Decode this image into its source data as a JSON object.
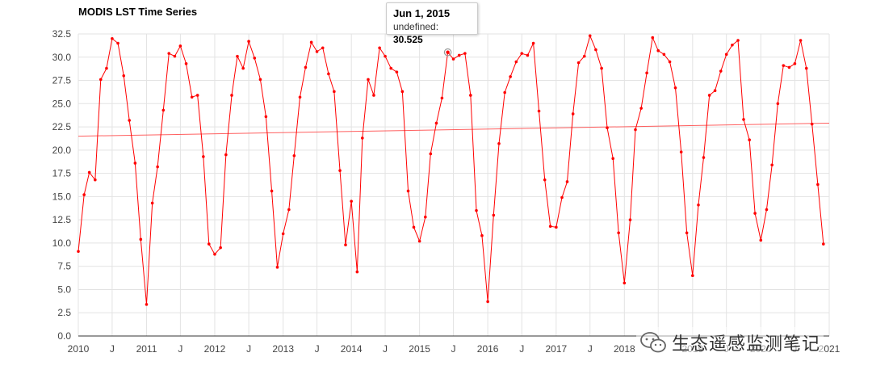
{
  "chart_data": {
    "type": "line",
    "title": "MODIS LST Time Series",
    "xlabel": "",
    "ylabel": "",
    "ylim": [
      0,
      32.5
    ],
    "yticks": [
      "0.0",
      "2.5",
      "5.0",
      "7.5",
      "10.0",
      "12.5",
      "15.0",
      "17.5",
      "20.0",
      "22.5",
      "25.0",
      "27.5",
      "30.0",
      "32.5"
    ],
    "xlim": [
      "2010-01-01",
      "2021-01-01"
    ],
    "xticks": [
      {
        "date": "2010-01-01",
        "label": "2010"
      },
      {
        "date": "2010-07-01",
        "label": "J"
      },
      {
        "date": "2011-01-01",
        "label": "2011"
      },
      {
        "date": "2011-07-01",
        "label": "J"
      },
      {
        "date": "2012-01-01",
        "label": "2012"
      },
      {
        "date": "2012-07-01",
        "label": "J"
      },
      {
        "date": "2013-01-01",
        "label": "2013"
      },
      {
        "date": "2013-07-01",
        "label": "J"
      },
      {
        "date": "2014-01-01",
        "label": "2014"
      },
      {
        "date": "2014-07-01",
        "label": "J"
      },
      {
        "date": "2015-01-01",
        "label": "2015"
      },
      {
        "date": "2015-07-01",
        "label": "J"
      },
      {
        "date": "2016-01-01",
        "label": "2016"
      },
      {
        "date": "2016-07-01",
        "label": "J"
      },
      {
        "date": "2017-01-01",
        "label": "2017"
      },
      {
        "date": "2017-07-01",
        "label": "J"
      },
      {
        "date": "2018-01-01",
        "label": "2018"
      },
      {
        "date": "2018-07-01",
        "label": "J"
      },
      {
        "date": "2019-01-01",
        "label": "2019"
      },
      {
        "date": "2019-07-01",
        "label": "J"
      },
      {
        "date": "2020-01-01",
        "label": "2020"
      },
      {
        "date": "2020-07-01",
        "label": "J"
      },
      {
        "date": "2021-01-01",
        "label": "2021"
      }
    ],
    "grid": true,
    "legend": "none",
    "series": [
      {
        "color": "#ff0000",
        "start": "2010-01",
        "interval": "monthly",
        "values": [
          9.1,
          15.2,
          17.6,
          16.8,
          27.6,
          28.8,
          32.0,
          31.5,
          28.0,
          23.2,
          18.6,
          10.4,
          3.4,
          14.3,
          18.2,
          24.3,
          30.4,
          30.1,
          31.2,
          29.3,
          25.7,
          25.9,
          19.3,
          9.9,
          8.8,
          9.5,
          19.5,
          25.9,
          30.1,
          28.8,
          31.7,
          29.9,
          27.6,
          23.6,
          15.6,
          7.4,
          11.0,
          13.6,
          19.4,
          25.7,
          28.9,
          31.6,
          30.6,
          31.0,
          28.2,
          26.3,
          17.8,
          9.8,
          14.5,
          6.9,
          21.3,
          27.6,
          25.9,
          31.0,
          30.1,
          28.8,
          28.4,
          26.3,
          15.6,
          11.7,
          10.2,
          12.8,
          19.6,
          22.9,
          25.6,
          30.525,
          29.8,
          30.2,
          30.4,
          25.9,
          13.5,
          10.8,
          3.7,
          13.0,
          20.7,
          26.2,
          27.9,
          29.5,
          30.4,
          30.2,
          31.5,
          24.2,
          16.8,
          11.8,
          11.7,
          14.9,
          16.6,
          23.9,
          29.4,
          30.1,
          32.3,
          30.8,
          28.8,
          22.4,
          19.1,
          11.1,
          5.7,
          12.5,
          22.2,
          24.5,
          28.3,
          32.1,
          30.7,
          30.3,
          29.5,
          26.7,
          19.8,
          11.1,
          6.5,
          14.1,
          19.2,
          25.9,
          26.4,
          28.5,
          30.3,
          31.3,
          31.8,
          23.3,
          21.1,
          13.2,
          10.3,
          13.6,
          18.4,
          25.0,
          29.1,
          28.9,
          29.3,
          31.8,
          28.8,
          22.8,
          16.3,
          9.9
        ]
      }
    ],
    "trendline": {
      "start": 21.5,
      "end": 22.9,
      "color": "#ff4444"
    },
    "tooltip": {
      "date": "Jun 1, 2015",
      "series_label": "undefined:",
      "value": "30.525",
      "point_date": "2015-06-01",
      "point_value": 30.525
    }
  },
  "watermark": {
    "icon": "wechat-icon",
    "text": "生态遥感监测笔记"
  }
}
